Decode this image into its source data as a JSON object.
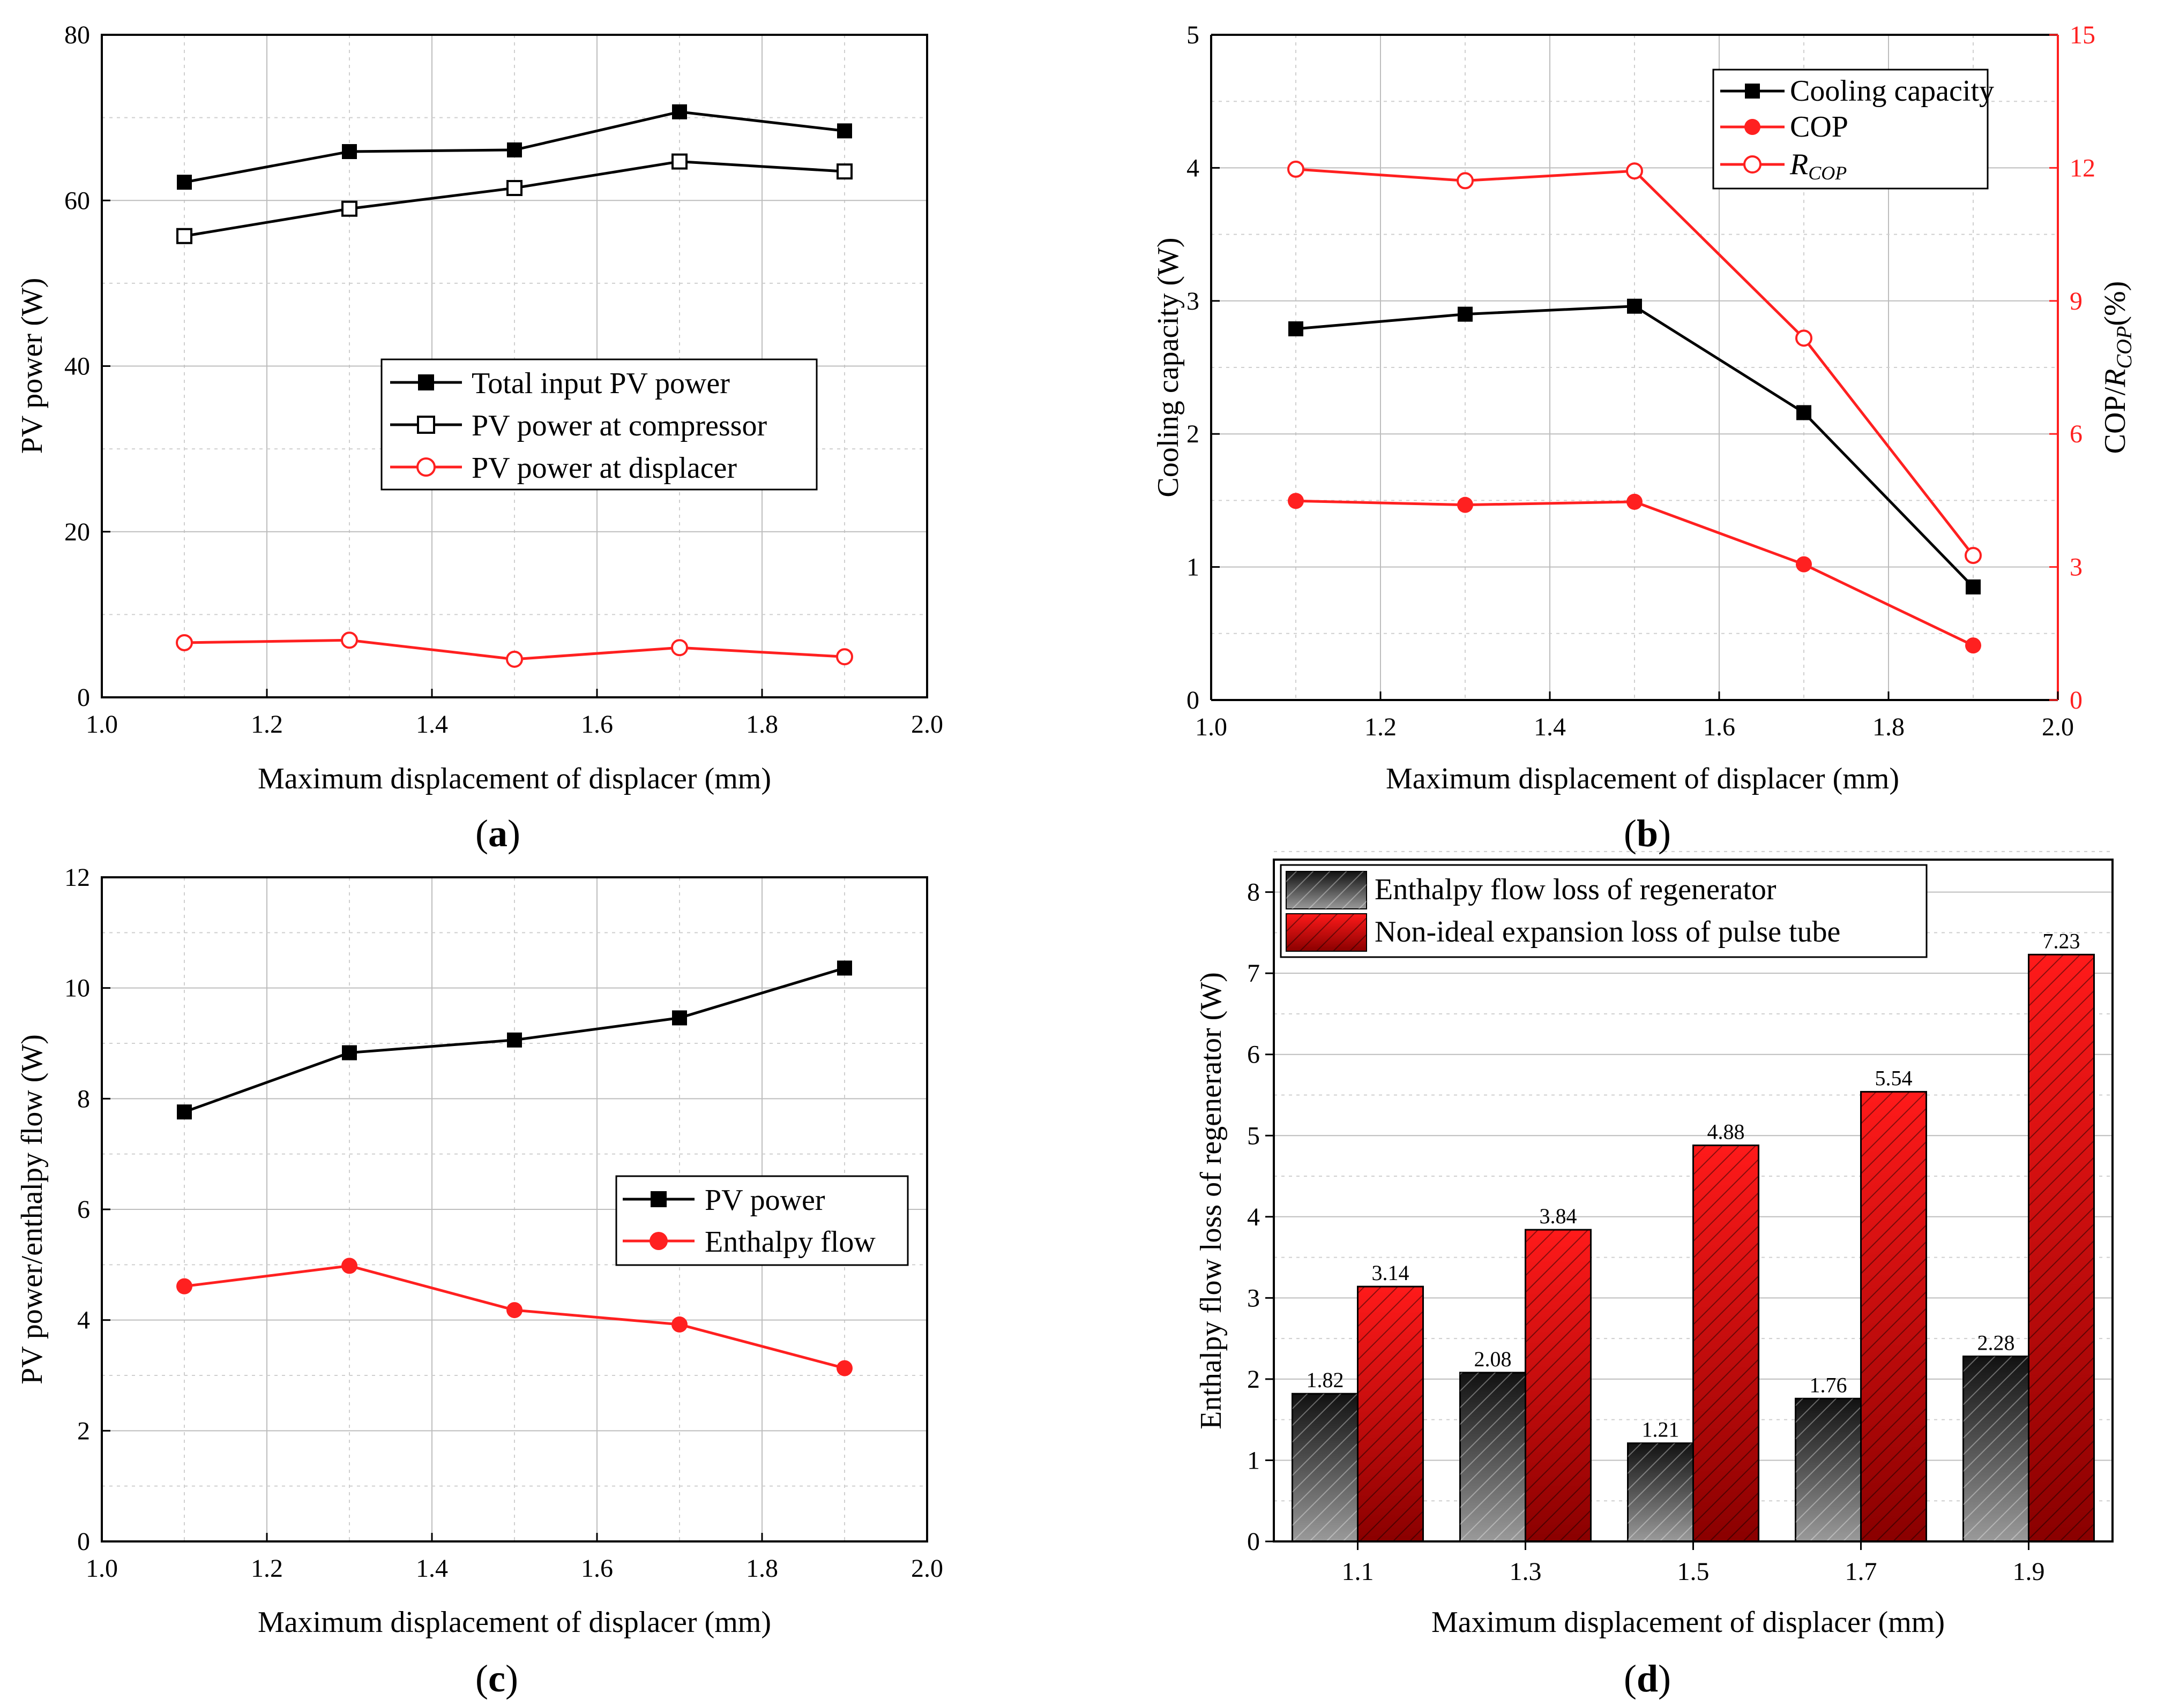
{
  "colors": {
    "black": "#000000",
    "red": "#ff2020",
    "bar_red": "#dd0000",
    "bar_dark": "#333333"
  },
  "panels": [
    {
      "id": "a",
      "label": "a",
      "chart_data": {
        "type": "line",
        "xlabel": "Maximum displacement of displacer (mm)",
        "ylabel": "PV power (W)",
        "xlim": [
          1.0,
          2.0
        ],
        "ylim": [
          0,
          80
        ],
        "xticks": [
          "1.0",
          "1.2",
          "1.4",
          "1.6",
          "1.8",
          "2.0"
        ],
        "yticks": [
          "0",
          "20",
          "40",
          "60",
          "80"
        ],
        "x": [
          1.1,
          1.3,
          1.5,
          1.7,
          1.9
        ],
        "series": [
          {
            "name": "Total input PV power",
            "values": [
              62.2,
              65.9,
              66.1,
              70.7,
              68.4
            ],
            "color": "#000000",
            "marker": "square-filled"
          },
          {
            "name": "PV power at compressor",
            "values": [
              55.7,
              59.0,
              61.5,
              64.7,
              63.5
            ],
            "color": "#000000",
            "marker": "square-open"
          },
          {
            "name": "PV power at displacer",
            "values": [
              6.6,
              6.9,
              4.6,
              6.0,
              4.9
            ],
            "color": "#ff2020",
            "marker": "circle-open"
          }
        ]
      }
    },
    {
      "id": "b",
      "label": "b",
      "chart_data": {
        "type": "line",
        "xlabel": "Maximum displacement of displacer (mm)",
        "ylabel": "Cooling capacity (W)",
        "y2label": "COP/R_COP(%)",
        "xlim": [
          1.0,
          2.0
        ],
        "ylim": [
          0,
          5
        ],
        "y2lim": [
          0,
          15
        ],
        "xticks": [
          "1.0",
          "1.2",
          "1.4",
          "1.6",
          "1.8",
          "2.0"
        ],
        "yticks": [
          "0",
          "1",
          "2",
          "3",
          "4",
          "5"
        ],
        "y2ticks": [
          "0",
          "3",
          "6",
          "9",
          "12",
          "15"
        ],
        "x": [
          1.1,
          1.3,
          1.5,
          1.7,
          1.9
        ],
        "series": [
          {
            "name": "Cooling capacity",
            "values": [
              2.79,
              2.9,
              2.96,
              2.16,
              0.85
            ],
            "axis": "left",
            "color": "#000000",
            "marker": "square-filled"
          },
          {
            "name": "COP",
            "values": [
              4.49,
              4.4,
              4.47,
              3.06,
              1.23
            ],
            "axis": "right",
            "color": "#ff2020",
            "marker": "circle-filled"
          },
          {
            "name": "R_COP",
            "values": [
              11.97,
              11.71,
              11.93,
              8.16,
              3.26
            ],
            "axis": "right",
            "color": "#ff2020",
            "marker": "circle-open"
          }
        ]
      }
    },
    {
      "id": "c",
      "label": "c",
      "chart_data": {
        "type": "line",
        "xlabel": "Maximum displacement of displacer (mm)",
        "ylabel": "PV power/enthalpy flow (W)",
        "xlim": [
          1.0,
          2.0
        ],
        "ylim": [
          0,
          12
        ],
        "xticks": [
          "1.0",
          "1.2",
          "1.4",
          "1.6",
          "1.8",
          "2.0"
        ],
        "yticks": [
          "0",
          "2",
          "4",
          "6",
          "8",
          "10",
          "12"
        ],
        "x": [
          1.1,
          1.3,
          1.5,
          1.7,
          1.9
        ],
        "series": [
          {
            "name": "PV power",
            "values": [
              7.76,
              8.83,
              9.06,
              9.46,
              10.36
            ],
            "color": "#000000",
            "marker": "square-filled"
          },
          {
            "name": "Enthalpy flow",
            "values": [
              4.61,
              4.98,
              4.18,
              3.92,
              3.13
            ],
            "color": "#ff2020",
            "marker": "circle-filled"
          }
        ]
      }
    },
    {
      "id": "d",
      "label": "d",
      "chart_data": {
        "type": "bar",
        "xlabel": "Maximum displacement of displacer (mm)",
        "ylabel": "Enthalpy flow loss of regenerator (W)",
        "ylim": [
          0,
          8.4
        ],
        "categories": [
          "1.1",
          "1.3",
          "1.5",
          "1.7",
          "1.9"
        ],
        "yticks": [
          "0",
          "1",
          "2",
          "3",
          "4",
          "5",
          "6",
          "7",
          "8"
        ],
        "series": [
          {
            "name": "Enthalpy flow loss of regenerator",
            "values": [
              1.82,
              2.08,
              1.21,
              1.76,
              2.28
            ],
            "labels": [
              "1.82",
              "2.08",
              "1.21",
              "1.76",
              "2.28"
            ],
            "color": "#333333"
          },
          {
            "name": "Non-ideal expansion loss of pulse tube",
            "values": [
              3.14,
              3.84,
              4.88,
              5.54,
              7.23
            ],
            "labels": [
              "3.14",
              "3.84",
              "4.88",
              "5.54",
              "7.23"
            ],
            "color": "#dd0000"
          }
        ]
      }
    }
  ]
}
